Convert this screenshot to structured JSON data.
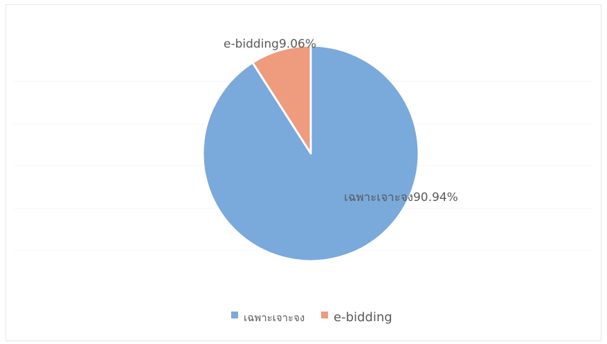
{
  "chart_data": {
    "type": "pie",
    "title": "",
    "start_angle_deg": 0,
    "direction": "clockwise",
    "slices": [
      {
        "label": "เฉพาะเจาะจง",
        "value": 90.94,
        "value_label": "90.94%",
        "color": "#7aa9dc"
      },
      {
        "label": "e-bidding",
        "value": 9.06,
        "value_label": "9.06%",
        "color": "#ee9b7e"
      }
    ],
    "legend_position": "bottom",
    "data_labels": [
      "เฉพาะเจาะจง90.94%",
      "e-bidding9.06%"
    ]
  },
  "legend": {
    "items": [
      {
        "label": "เฉพาะเจาะจง",
        "color": "#7aa9dc"
      },
      {
        "label": "e-bidding",
        "color": "#ee9b7e"
      }
    ]
  }
}
